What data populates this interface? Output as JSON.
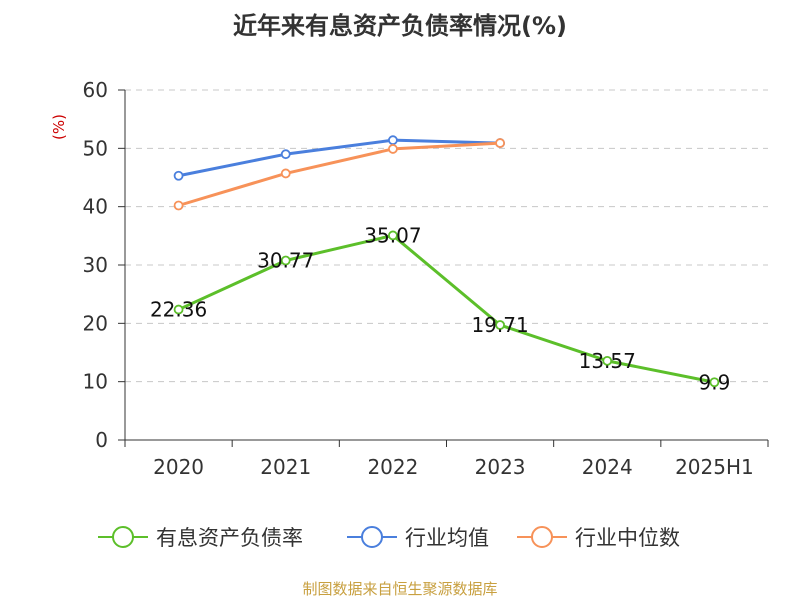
{
  "chart_data": {
    "type": "line",
    "title": "近年来有息资产负债率情况(%)",
    "ylabel": "(%)",
    "xlabel": "",
    "categories": [
      "2020",
      "2021",
      "2022",
      "2023",
      "2024",
      "2025H1"
    ],
    "ylim": [
      0,
      60
    ],
    "yticks": [
      0,
      10,
      20,
      30,
      40,
      50,
      60
    ],
    "grid": true,
    "legend_position": "bottom",
    "series": [
      {
        "name": "有息资产负债率",
        "color": "#5cbf2a",
        "values": [
          22.36,
          30.77,
          35.07,
          19.71,
          13.57,
          9.9
        ],
        "labels": [
          "22.36",
          "30.77",
          "35.07",
          "19.71",
          "13.57",
          "9.9"
        ]
      },
      {
        "name": "行业均值",
        "color": "#4a7fdd",
        "values": [
          45.3,
          49.0,
          51.4,
          50.9,
          null,
          null
        ]
      },
      {
        "name": "行业中位数",
        "color": "#f79259",
        "values": [
          40.2,
          45.7,
          49.9,
          50.9,
          null,
          null
        ]
      }
    ]
  },
  "footer": {
    "source": "制图数据来自恒生聚源数据库"
  }
}
